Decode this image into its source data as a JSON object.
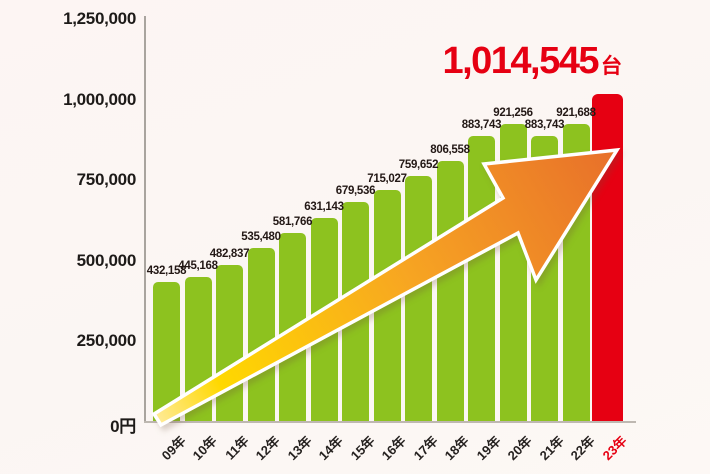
{
  "chart_data": {
    "type": "bar",
    "title": "",
    "categories": [
      "09年",
      "10年",
      "11年",
      "12年",
      "13年",
      "14年",
      "15年",
      "16年",
      "17年",
      "18年",
      "19年",
      "20年",
      "21年",
      "22年",
      "23年"
    ],
    "values": [
      432158,
      445168,
      482837,
      535480,
      581766,
      631143,
      679536,
      715027,
      759652,
      806558,
      883743,
      921256,
      883743,
      921688,
      1014545
    ],
    "value_labels": [
      "432,158",
      "445,168",
      "482,837",
      "535,480",
      "581,766",
      "631,143",
      "679,536",
      "715,027",
      "759,652",
      "806,558",
      "883,743",
      "921,256",
      "883,743",
      "921,688",
      "1,014,545"
    ],
    "y_ticks": [
      {
        "value": 1250000,
        "label": "1,250,000"
      },
      {
        "value": 1000000,
        "label": "1,000,000"
      },
      {
        "value": 750000,
        "label": "750,000"
      },
      {
        "value": 500000,
        "label": "500,000"
      },
      {
        "value": 250000,
        "label": "250,000"
      },
      {
        "value": 0,
        "label": "0円"
      }
    ],
    "ylim": [
      0,
      1250000
    ],
    "grid": "off",
    "legend": "none",
    "highlight_index": 14,
    "annotations": {
      "headline": {
        "text": "1,014,545",
        "unit": "台"
      },
      "trend_arrow": "rising arrow from bottom-left to top-right, yellow to orange gradient, white outline"
    }
  },
  "colors": {
    "background": "#fbf6f3",
    "bar_green": "#8dc21f",
    "bar_red": "#e60012",
    "headline_red": "#e60012",
    "tick_text": "#1d1a18",
    "value_label_text": "#231815",
    "x_label_text": "#262220",
    "x_label_highlight": "#e60012",
    "arrow_gradient": [
      "#ffeb9a",
      "#ffd800",
      "#f7a522",
      "#e8702a"
    ],
    "arrow_outline": "#ffffff",
    "axis_line": "#a9a49e"
  }
}
